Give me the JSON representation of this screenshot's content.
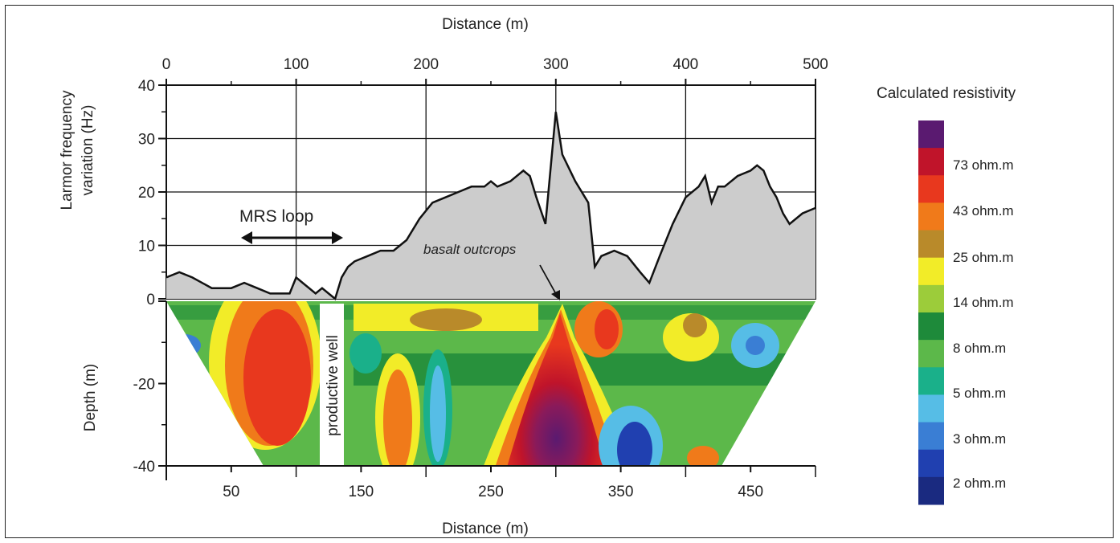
{
  "chart_data": [
    {
      "type": "area",
      "xlabel": "Distance (m)",
      "ylabel": "Larmor frequency variation (Hz)",
      "xlim": [
        0,
        500
      ],
      "ylim": [
        0,
        40
      ],
      "x_ticks": [
        "0",
        "100",
        "200",
        "300",
        "400",
        "500"
      ],
      "y_ticks": [
        "0",
        "10",
        "20",
        "30",
        "40"
      ],
      "grid": true,
      "series": [
        {
          "x": [
            0,
            10,
            20,
            35,
            50,
            60,
            70,
            80,
            95,
            100,
            105,
            115,
            120,
            125,
            130,
            135,
            140,
            145,
            155,
            165,
            175,
            185,
            195,
            205,
            215,
            225,
            235,
            245,
            250,
            255,
            265,
            275,
            280,
            285,
            292,
            300,
            305,
            315,
            325,
            330,
            335,
            345,
            355,
            365,
            372,
            380,
            390,
            400,
            410,
            415,
            420,
            425,
            430,
            440,
            450,
            455,
            460,
            465,
            470,
            475,
            480,
            490,
            500
          ],
          "values": [
            4,
            5,
            4,
            2,
            2,
            3,
            2,
            1,
            1,
            4,
            3,
            1,
            2,
            1,
            0,
            4,
            6,
            7,
            8,
            9,
            9,
            11,
            15,
            18,
            19,
            20,
            21,
            21,
            22,
            21,
            22,
            24,
            23,
            19,
            14,
            35,
            27,
            22,
            18,
            6,
            8,
            9,
            8,
            5,
            3,
            8,
            14,
            19,
            21,
            23,
            18,
            21,
            21,
            23,
            24,
            25,
            24,
            21,
            19,
            16,
            14,
            16,
            17
          ]
        }
      ]
    },
    {
      "type": "heatmap",
      "xlabel": "Distance (m)",
      "ylabel": "Depth (m)",
      "xlim": [
        0,
        500
      ],
      "ylim": [
        -40,
        0
      ],
      "x_ticks": [
        "50",
        "150",
        "250",
        "350",
        "450"
      ],
      "y_ticks": [
        "0",
        "-20",
        "-40"
      ],
      "legend_title": "Calculated resistivity",
      "legend_labels": [
        "73 ohm.m",
        "43 ohm.m",
        "25 ohm.m",
        "14 ohm.m",
        "8 ohm.m",
        "5 ohm.m",
        "3 ohm.m",
        "2 ohm.m"
      ],
      "scale_colors": [
        "#5a1a70",
        "#c0142a",
        "#e8381e",
        "#f07a1a",
        "#b98a2a",
        "#f2ec28",
        "#9ccc3a",
        "#1e8a3a",
        "#5cb84a",
        "#1ab08a",
        "#56bde6",
        "#3a7ed4",
        "#2040b0",
        "#1a2a80"
      ]
    }
  ],
  "annotations": {
    "mrs_loop": "MRS loop",
    "basalt": "basalt outcrops",
    "well": "productive well"
  }
}
